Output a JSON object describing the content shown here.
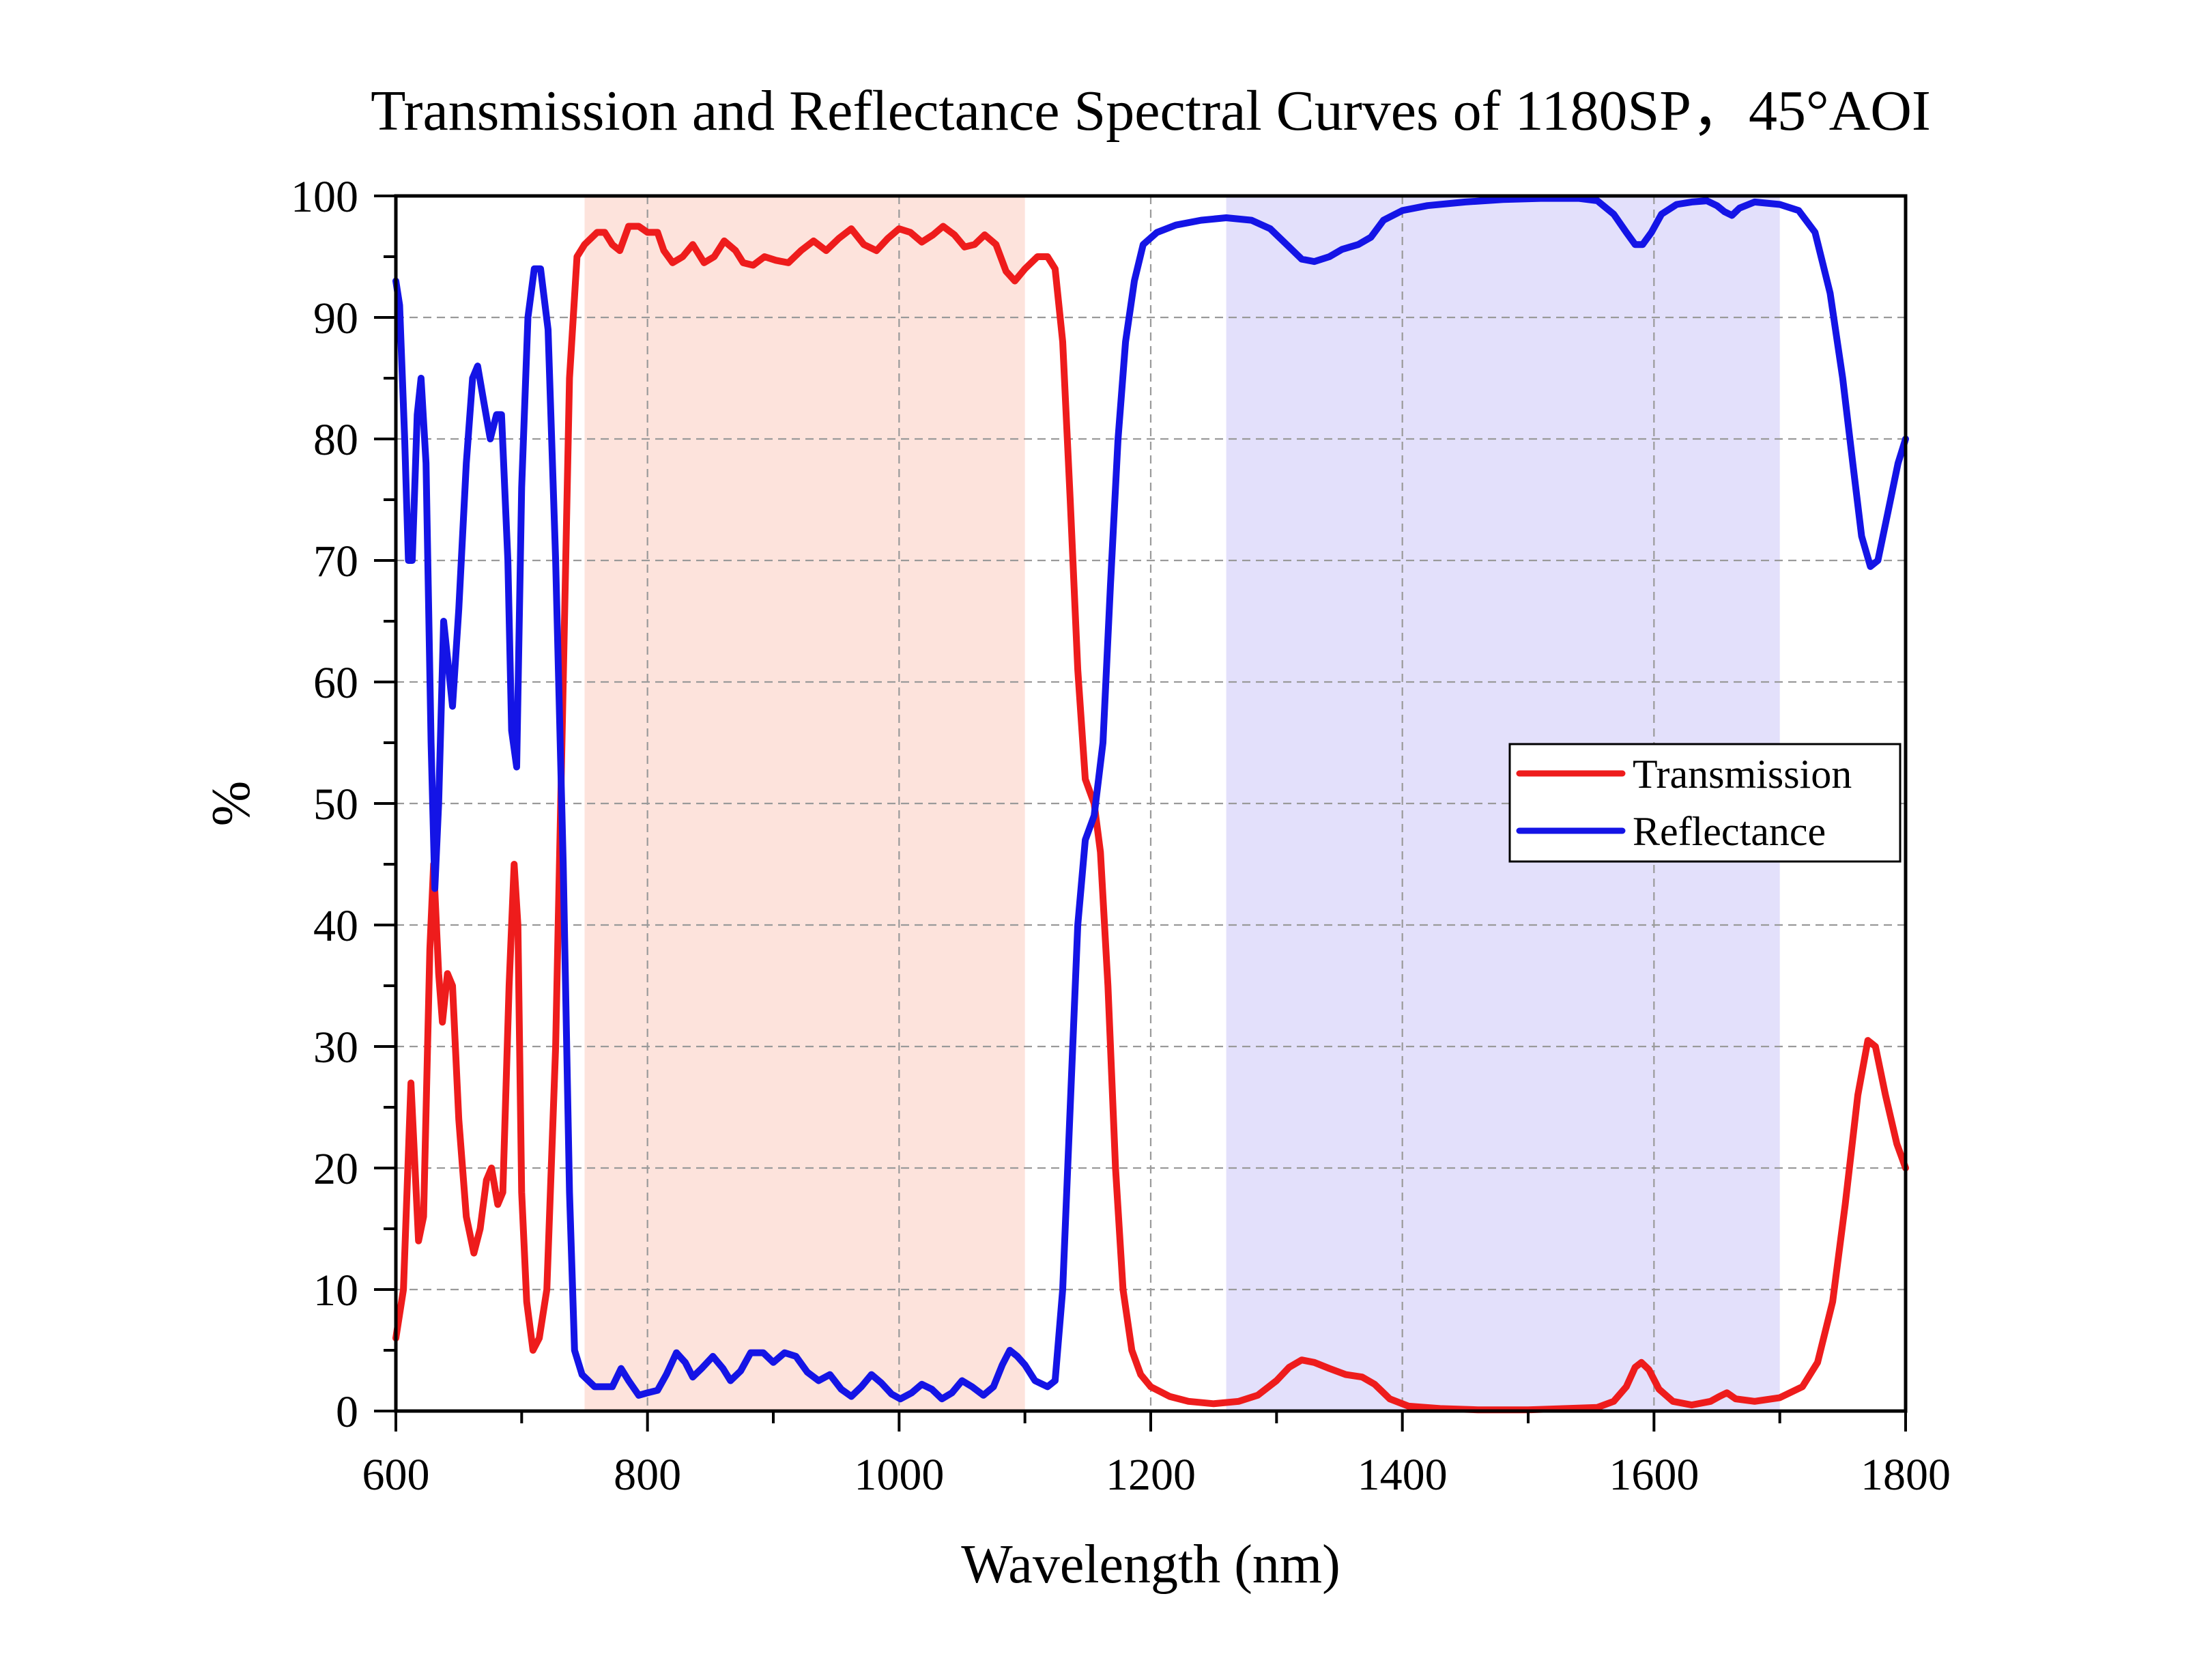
{
  "chart_data": {
    "type": "line",
    "title": "Transmission and Reflectance Spectral Curves of 1180SP，45°AOI",
    "xlabel": "Wavelength (nm)",
    "ylabel": "%",
    "xlim": [
      600,
      1800
    ],
    "ylim": [
      0,
      100
    ],
    "xticks": [
      600,
      800,
      1000,
      1200,
      1400,
      1600,
      1800
    ],
    "yticks": [
      0,
      10,
      20,
      30,
      40,
      50,
      60,
      70,
      80,
      90,
      100
    ],
    "grid": true,
    "legend_position": "right",
    "shaded_bands": [
      {
        "x_start": 750,
        "x_end": 1100,
        "color": "#fde3dc"
      },
      {
        "x_start": 1260,
        "x_end": 1700,
        "color": "#e3e0fb"
      }
    ],
    "series": [
      {
        "name": "Transmission",
        "color": "#ee1c1c",
        "points": [
          [
            600,
            6
          ],
          [
            606,
            10
          ],
          [
            612,
            27
          ],
          [
            618,
            14
          ],
          [
            622,
            16
          ],
          [
            627,
            38
          ],
          [
            630,
            45
          ],
          [
            634,
            36
          ],
          [
            637,
            32
          ],
          [
            641,
            36
          ],
          [
            645,
            35
          ],
          [
            650,
            24
          ],
          [
            656,
            16
          ],
          [
            662,
            13
          ],
          [
            667,
            15
          ],
          [
            672,
            19
          ],
          [
            676,
            20
          ],
          [
            681,
            17
          ],
          [
            685,
            18
          ],
          [
            690,
            35
          ],
          [
            694,
            45
          ],
          [
            697,
            40
          ],
          [
            700,
            18
          ],
          [
            704,
            9
          ],
          [
            709,
            5
          ],
          [
            714,
            6
          ],
          [
            720,
            10
          ],
          [
            727,
            30
          ],
          [
            733,
            60
          ],
          [
            738,
            85
          ],
          [
            744,
            95
          ],
          [
            750,
            96
          ],
          [
            760,
            97
          ],
          [
            766,
            97
          ],
          [
            772,
            96
          ],
          [
            778,
            95.5
          ],
          [
            785,
            97.5
          ],
          [
            793,
            97.5
          ],
          [
            800,
            97
          ],
          [
            808,
            97
          ],
          [
            813,
            95.5
          ],
          [
            820,
            94.5
          ],
          [
            828,
            95
          ],
          [
            836,
            96
          ],
          [
            845,
            94.5
          ],
          [
            853,
            95
          ],
          [
            861,
            96.3
          ],
          [
            870,
            95.5
          ],
          [
            876,
            94.5
          ],
          [
            884,
            94.3
          ],
          [
            893,
            95
          ],
          [
            902,
            94.7
          ],
          [
            912,
            94.5
          ],
          [
            922,
            95.5
          ],
          [
            932,
            96.3
          ],
          [
            942,
            95.5
          ],
          [
            952,
            96.5
          ],
          [
            962,
            97.3
          ],
          [
            972,
            96
          ],
          [
            982,
            95.5
          ],
          [
            991,
            96.5
          ],
          [
            1000,
            97.3
          ],
          [
            1009,
            97
          ],
          [
            1018,
            96.2
          ],
          [
            1027,
            96.8
          ],
          [
            1035,
            97.5
          ],
          [
            1044,
            96.8
          ],
          [
            1052,
            95.8
          ],
          [
            1060,
            96
          ],
          [
            1068,
            96.8
          ],
          [
            1077,
            96
          ],
          [
            1085,
            93.8
          ],
          [
            1092,
            93
          ],
          [
            1100,
            94
          ],
          [
            1110,
            95
          ],
          [
            1118,
            95
          ],
          [
            1124,
            94
          ],
          [
            1130,
            88
          ],
          [
            1136,
            75
          ],
          [
            1142,
            61
          ],
          [
            1148,
            52
          ],
          [
            1155,
            50
          ],
          [
            1160,
            46
          ],
          [
            1166,
            35
          ],
          [
            1172,
            20
          ],
          [
            1178,
            10
          ],
          [
            1185,
            5
          ],
          [
            1192,
            3
          ],
          [
            1200,
            2
          ],
          [
            1215,
            1.2
          ],
          [
            1230,
            0.8
          ],
          [
            1250,
            0.6
          ],
          [
            1270,
            0.8
          ],
          [
            1285,
            1.3
          ],
          [
            1300,
            2.5
          ],
          [
            1310,
            3.6
          ],
          [
            1320,
            4.2
          ],
          [
            1330,
            4
          ],
          [
            1342,
            3.5
          ],
          [
            1355,
            3
          ],
          [
            1368,
            2.8
          ],
          [
            1378,
            2.2
          ],
          [
            1390,
            1
          ],
          [
            1405,
            0.4
          ],
          [
            1430,
            0.2
          ],
          [
            1460,
            0.1
          ],
          [
            1500,
            0.1
          ],
          [
            1530,
            0.2
          ],
          [
            1555,
            0.3
          ],
          [
            1568,
            0.8
          ],
          [
            1578,
            2
          ],
          [
            1585,
            3.6
          ],
          [
            1590,
            4
          ],
          [
            1596,
            3.4
          ],
          [
            1604,
            1.8
          ],
          [
            1615,
            0.8
          ],
          [
            1630,
            0.5
          ],
          [
            1645,
            0.8
          ],
          [
            1652,
            1.2
          ],
          [
            1658,
            1.5
          ],
          [
            1665,
            1
          ],
          [
            1680,
            0.8
          ],
          [
            1700,
            1.1
          ],
          [
            1718,
            2
          ],
          [
            1730,
            4
          ],
          [
            1742,
            9
          ],
          [
            1752,
            17
          ],
          [
            1762,
            26
          ],
          [
            1770,
            30.5
          ],
          [
            1776,
            30
          ],
          [
            1784,
            26
          ],
          [
            1793,
            22
          ],
          [
            1800,
            20
          ]
        ]
      },
      {
        "name": "Reflectance",
        "color": "#1414e6",
        "points": [
          [
            600,
            93
          ],
          [
            603,
            91
          ],
          [
            607,
            80
          ],
          [
            610,
            70
          ],
          [
            613,
            70
          ],
          [
            617,
            82
          ],
          [
            620,
            85
          ],
          [
            624,
            78
          ],
          [
            628,
            55
          ],
          [
            631,
            43
          ],
          [
            634,
            50
          ],
          [
            638,
            65
          ],
          [
            641,
            62
          ],
          [
            645,
            58
          ],
          [
            650,
            66
          ],
          [
            656,
            78
          ],
          [
            661,
            85
          ],
          [
            665,
            86
          ],
          [
            670,
            83
          ],
          [
            675,
            80
          ],
          [
            680,
            82
          ],
          [
            684,
            82
          ],
          [
            689,
            70
          ],
          [
            692,
            56
          ],
          [
            696,
            53
          ],
          [
            700,
            76
          ],
          [
            705,
            90
          ],
          [
            710,
            94
          ],
          [
            715,
            94
          ],
          [
            721,
            89
          ],
          [
            727,
            70
          ],
          [
            733,
            45
          ],
          [
            738,
            18
          ],
          [
            742,
            5
          ],
          [
            748,
            3
          ],
          [
            758,
            2
          ],
          [
            766,
            2
          ],
          [
            772,
            2
          ],
          [
            779,
            3.5
          ],
          [
            785,
            2.5
          ],
          [
            793,
            1.3
          ],
          [
            800,
            1.5
          ],
          [
            808,
            1.7
          ],
          [
            815,
            3
          ],
          [
            823,
            4.8
          ],
          [
            830,
            4
          ],
          [
            836,
            2.8
          ],
          [
            843,
            3.5
          ],
          [
            852,
            4.5
          ],
          [
            860,
            3.5
          ],
          [
            866,
            2.5
          ],
          [
            874,
            3.3
          ],
          [
            882,
            4.8
          ],
          [
            892,
            4.8
          ],
          [
            900,
            4
          ],
          [
            909,
            4.8
          ],
          [
            918,
            4.5
          ],
          [
            927,
            3.2
          ],
          [
            936,
            2.5
          ],
          [
            945,
            3
          ],
          [
            954,
            1.8
          ],
          [
            962,
            1.2
          ],
          [
            970,
            2
          ],
          [
            978,
            3
          ],
          [
            986,
            2.3
          ],
          [
            994,
            1.4
          ],
          [
            1001,
            1
          ],
          [
            1010,
            1.5
          ],
          [
            1018,
            2.2
          ],
          [
            1026,
            1.8
          ],
          [
            1034,
            1
          ],
          [
            1042,
            1.5
          ],
          [
            1050,
            2.5
          ],
          [
            1058,
            2
          ],
          [
            1067,
            1.3
          ],
          [
            1075,
            2
          ],
          [
            1082,
            3.8
          ],
          [
            1088,
            5
          ],
          [
            1094,
            4.5
          ],
          [
            1100,
            3.8
          ],
          [
            1108,
            2.5
          ],
          [
            1118,
            2
          ],
          [
            1124,
            2.5
          ],
          [
            1130,
            10
          ],
          [
            1136,
            25
          ],
          [
            1142,
            40
          ],
          [
            1148,
            47
          ],
          [
            1155,
            49
          ],
          [
            1162,
            55
          ],
          [
            1168,
            68
          ],
          [
            1174,
            80
          ],
          [
            1180,
            88
          ],
          [
            1187,
            93
          ],
          [
            1194,
            96
          ],
          [
            1205,
            97
          ],
          [
            1220,
            97.6
          ],
          [
            1240,
            98
          ],
          [
            1260,
            98.2
          ],
          [
            1280,
            98
          ],
          [
            1295,
            97.3
          ],
          [
            1308,
            96
          ],
          [
            1320,
            94.8
          ],
          [
            1330,
            94.6
          ],
          [
            1342,
            95
          ],
          [
            1352,
            95.6
          ],
          [
            1365,
            96
          ],
          [
            1375,
            96.6
          ],
          [
            1385,
            98
          ],
          [
            1400,
            98.8
          ],
          [
            1420,
            99.2
          ],
          [
            1450,
            99.5
          ],
          [
            1480,
            99.7
          ],
          [
            1510,
            99.8
          ],
          [
            1540,
            99.8
          ],
          [
            1555,
            99.6
          ],
          [
            1568,
            98.5
          ],
          [
            1578,
            97
          ],
          [
            1585,
            96
          ],
          [
            1591,
            96
          ],
          [
            1598,
            97
          ],
          [
            1606,
            98.5
          ],
          [
            1618,
            99.3
          ],
          [
            1630,
            99.5
          ],
          [
            1642,
            99.6
          ],
          [
            1650,
            99.2
          ],
          [
            1656,
            98.7
          ],
          [
            1662,
            98.4
          ],
          [
            1668,
            99
          ],
          [
            1680,
            99.5
          ],
          [
            1700,
            99.3
          ],
          [
            1715,
            98.8
          ],
          [
            1728,
            97
          ],
          [
            1740,
            92
          ],
          [
            1750,
            85
          ],
          [
            1758,
            78
          ],
          [
            1765,
            72
          ],
          [
            1772,
            69.5
          ],
          [
            1778,
            70
          ],
          [
            1786,
            74
          ],
          [
            1794,
            78
          ],
          [
            1800,
            80
          ]
        ]
      }
    ]
  }
}
